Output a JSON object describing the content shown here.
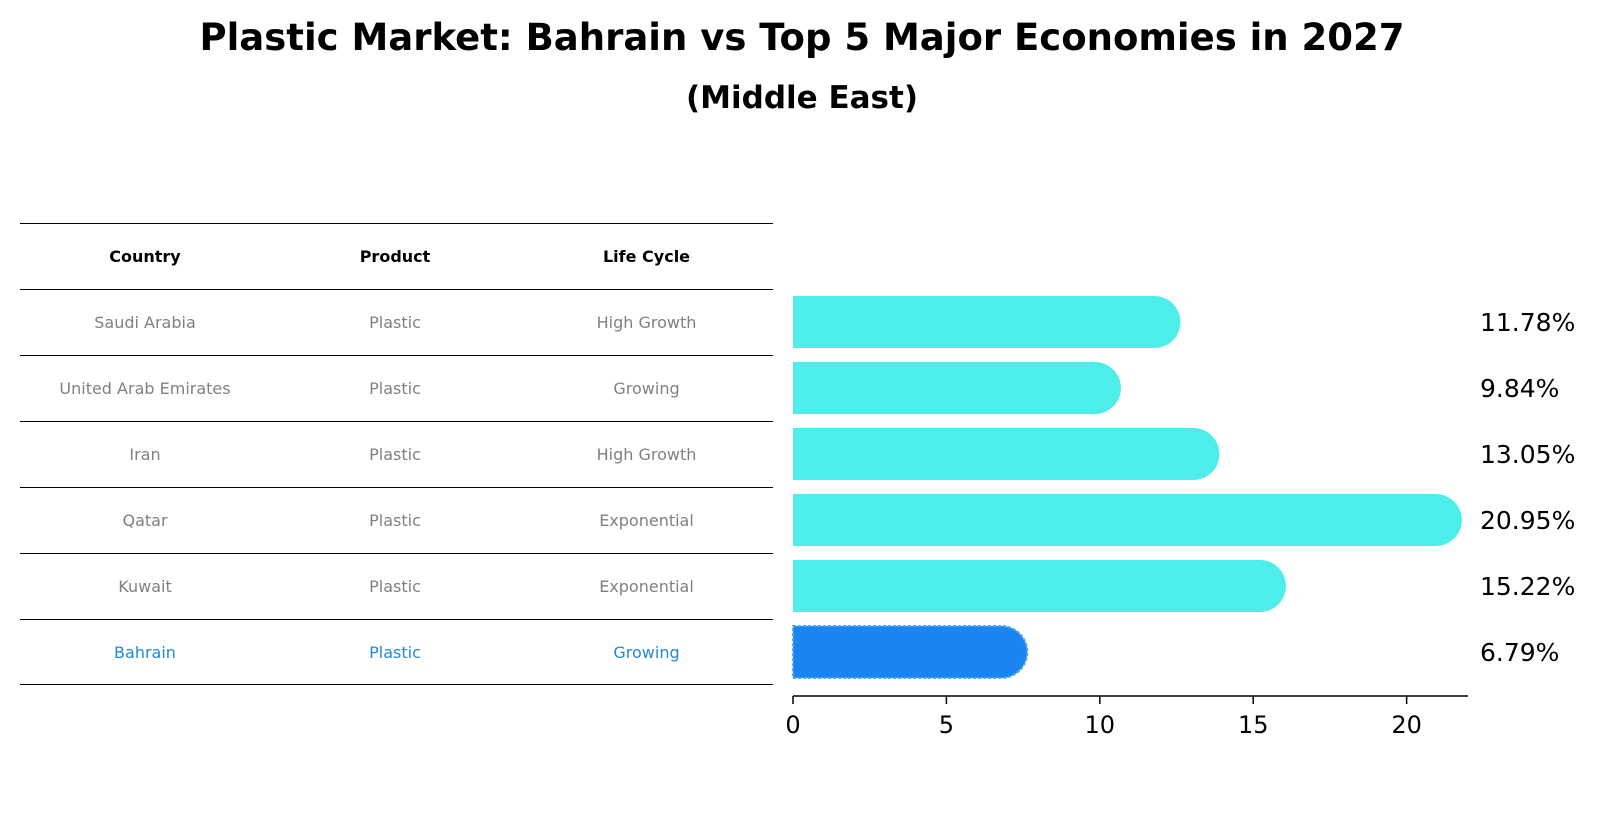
{
  "title": "Plastic Market: Bahrain vs Top 5 Major Economies in 2027",
  "subtitle": "(Middle East)",
  "table": {
    "headers": [
      "Country",
      "Product",
      "Life Cycle"
    ],
    "rows": [
      [
        "Saudi Arabia",
        "Plastic",
        "High Growth"
      ],
      [
        "United Arab Emirates",
        "Plastic",
        "Growing"
      ],
      [
        "Iran",
        "Plastic",
        "High Growth"
      ],
      [
        "Qatar",
        "Plastic",
        "Exponential"
      ],
      [
        "Kuwait",
        "Plastic",
        "Exponential"
      ],
      [
        "Bahrain",
        "Plastic",
        "Growing"
      ]
    ],
    "highlight_row": 5
  },
  "chart_data": {
    "type": "bar",
    "orientation": "horizontal",
    "categories": [
      "Saudi Arabia",
      "United Arab Emirates",
      "Iran",
      "Qatar",
      "Kuwait",
      "Bahrain"
    ],
    "values": [
      11.78,
      9.84,
      13.05,
      20.95,
      15.22,
      6.79
    ],
    "value_labels": [
      "11.78%",
      "9.84%",
      "13.05%",
      "20.95%",
      "15.22%",
      "6.79%"
    ],
    "xlim": [
      0,
      22
    ],
    "xticks": [
      0,
      5,
      10,
      15,
      20
    ],
    "xtick_labels": [
      "0",
      "5",
      "10",
      "15",
      "20"
    ],
    "colors": {
      "default": "#4deeea",
      "highlight": "#1a85f0"
    },
    "highlight_index": 5
  }
}
